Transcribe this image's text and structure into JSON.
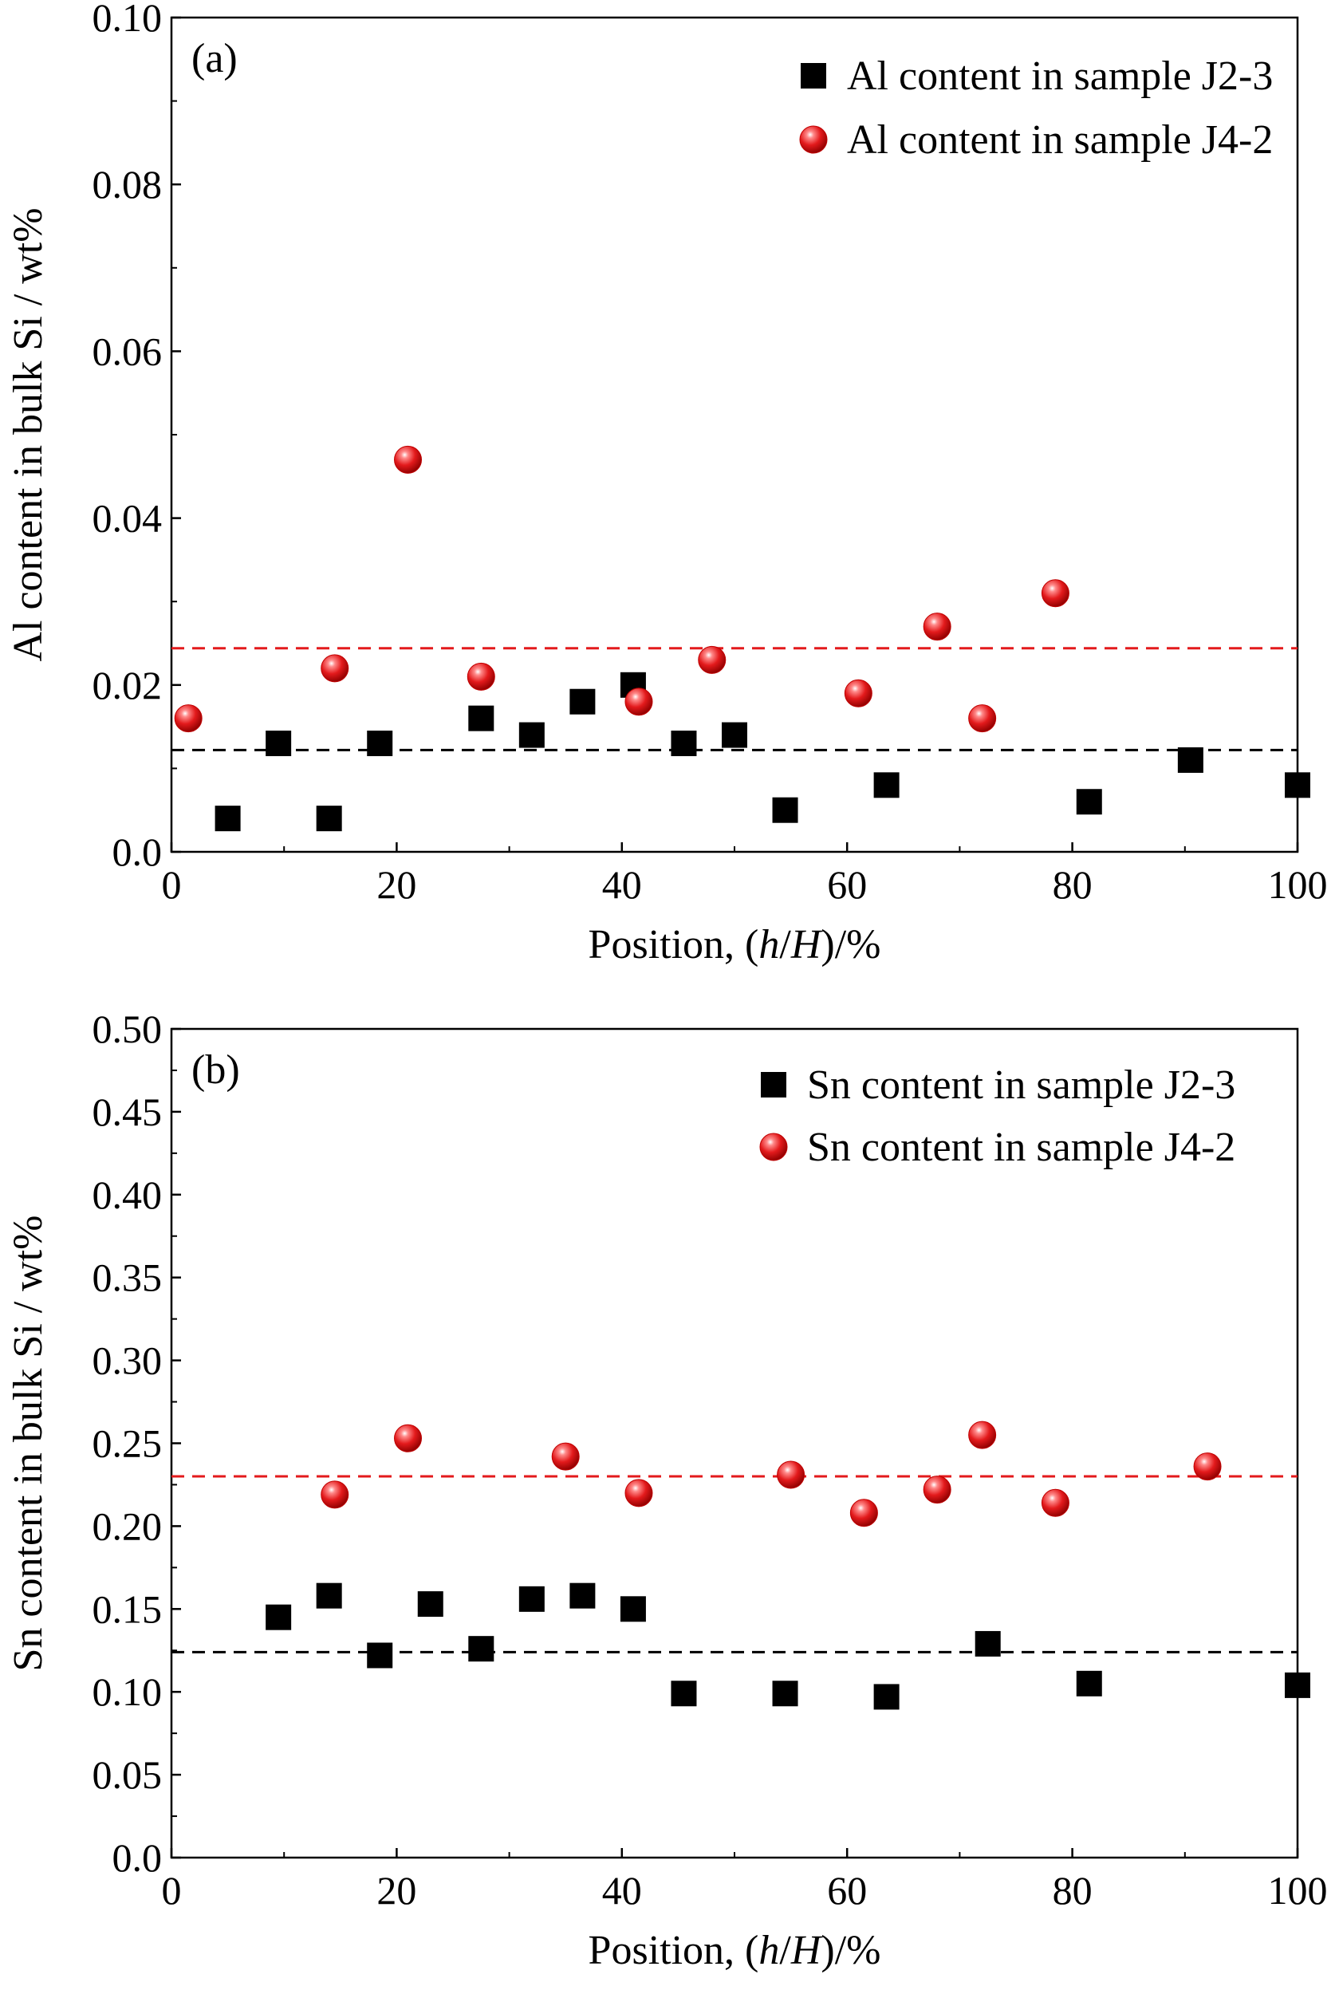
{
  "chart_data": [
    {
      "type": "scatter",
      "panel_label": "(a)",
      "ylabel": "Al content in bulk Si / wt%",
      "xlabel_parts": [
        "Position, (",
        "h",
        "/",
        "H",
        ")/%"
      ],
      "xlim": [
        0,
        100
      ],
      "ylim": [
        0,
        0.1
      ],
      "xticks": [
        "0",
        "20",
        "40",
        "60",
        "80",
        "100"
      ],
      "yticks": [
        "0.0",
        "0.02",
        "0.04",
        "0.06",
        "0.08",
        "0.10"
      ],
      "ytick_values": [
        0,
        0.02,
        0.04,
        0.06,
        0.08,
        0.1
      ],
      "legend_position": "top-right",
      "grid": false,
      "series": [
        {
          "name": "Al content in sample J2-3",
          "marker": "square",
          "color": "#000000",
          "mean_line": 0.0122,
          "x": [
            5,
            9.5,
            14,
            18.5,
            27.5,
            32,
            36.5,
            41,
            45.5,
            50,
            54.5,
            63.5,
            81.5,
            90.5,
            100
          ],
          "y": [
            0.004,
            0.013,
            0.004,
            0.013,
            0.016,
            0.014,
            0.018,
            0.02,
            0.013,
            0.014,
            0.005,
            0.008,
            0.006,
            0.011,
            0.008
          ]
        },
        {
          "name": "Al content in sample J4-2",
          "marker": "sphere",
          "color": "#e31a1c",
          "mean_line": 0.0244,
          "x": [
            1.5,
            14.5,
            21,
            27.5,
            41.5,
            48,
            61,
            68,
            72,
            78.5
          ],
          "y": [
            0.016,
            0.022,
            0.047,
            0.021,
            0.018,
            0.023,
            0.019,
            0.027,
            0.016,
            0.031
          ]
        }
      ]
    },
    {
      "type": "scatter",
      "panel_label": "(b)",
      "ylabel": "Sn content in bulk Si / wt%",
      "xlabel_parts": [
        "Position, (",
        "h",
        "/",
        "H",
        ")/%"
      ],
      "xlim": [
        0,
        100
      ],
      "ylim": [
        0,
        0.5
      ],
      "xticks": [
        "0",
        "20",
        "40",
        "60",
        "80",
        "100"
      ],
      "yticks": [
        "0.0",
        "0.05",
        "0.10",
        "0.15",
        "0.20",
        "0.25",
        "0.30",
        "0.35",
        "0.40",
        "0.45",
        "0.50"
      ],
      "ytick_values": [
        0,
        0.05,
        0.1,
        0.15,
        0.2,
        0.25,
        0.3,
        0.35,
        0.4,
        0.45,
        0.5
      ],
      "legend_position": "top-right",
      "grid": false,
      "series": [
        {
          "name": "Sn content in sample J2-3",
          "marker": "square",
          "color": "#000000",
          "mean_line": 0.124,
          "x": [
            9.5,
            14,
            18.5,
            23,
            27.5,
            32,
            36.5,
            41,
            45.5,
            54.5,
            63.5,
            72.5,
            81.5,
            100
          ],
          "y": [
            0.145,
            0.158,
            0.122,
            0.153,
            0.126,
            0.156,
            0.158,
            0.15,
            0.099,
            0.099,
            0.097,
            0.129,
            0.105,
            0.104
          ]
        },
        {
          "name": "Sn content in sample J4-2",
          "marker": "sphere",
          "color": "#e31a1c",
          "mean_line": 0.23,
          "x": [
            14.5,
            21,
            35,
            41.5,
            55,
            61.5,
            68,
            72,
            78.5,
            92
          ],
          "y": [
            0.219,
            0.253,
            0.242,
            0.22,
            0.231,
            0.208,
            0.222,
            0.255,
            0.214,
            0.236
          ]
        }
      ]
    }
  ]
}
